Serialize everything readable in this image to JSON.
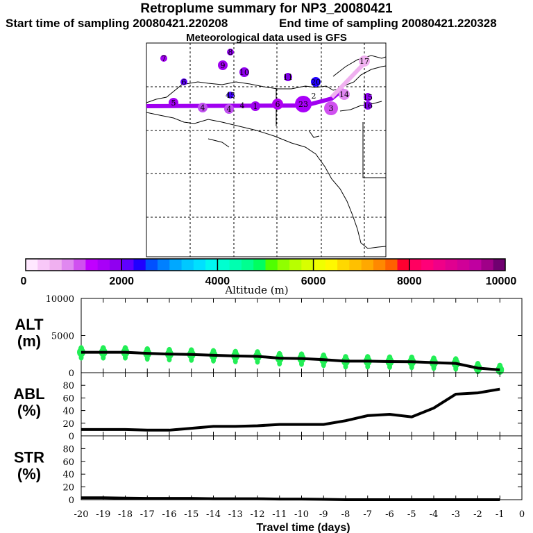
{
  "header": {
    "title": "Retroplume summary for NP3_20080421",
    "start": "Start time of sampling 20080421.220208",
    "end": "End time of sampling 20080421.220328",
    "met": "Meteorological data used is GFS"
  },
  "map": {
    "track_color": "#a000f0",
    "plumes": [
      {
        "label": "7",
        "color": "#a000f0"
      },
      {
        "label": "8",
        "color": "#9000f0"
      },
      {
        "label": "9",
        "color": "#a000f0"
      },
      {
        "label": "10",
        "color": "#9000f0"
      },
      {
        "label": "11",
        "color": "#8000e8"
      },
      {
        "label": "20",
        "color": "#2000ff"
      },
      {
        "label": "6",
        "color": "#6000ff"
      },
      {
        "label": "45",
        "color": "#4000ff"
      },
      {
        "label": "5",
        "color": "#a000f0"
      },
      {
        "label": "4",
        "color": "#c050f0"
      },
      {
        "label": "4",
        "color": "#c050f0"
      },
      {
        "label": "1",
        "color": "#a000f0"
      },
      {
        "label": "6",
        "color": "#b000f0"
      },
      {
        "label": "23",
        "color": "#a800f8"
      },
      {
        "label": "3",
        "color": "#d050f0"
      },
      {
        "label": "2",
        "color": "#e088f0"
      },
      {
        "label": "14",
        "color": "#e088f0"
      },
      {
        "label": "15",
        "color": "#9000f0"
      },
      {
        "label": "16",
        "color": "#8000e8"
      },
      {
        "label": "17",
        "color": "#f0b0f0"
      },
      {
        "label": "4",
        "color": "#000000"
      }
    ]
  },
  "colorbar": {
    "label": "Altitude (m)",
    "ticks": [
      "0",
      "2000",
      "4000",
      "6000",
      "8000",
      "10000"
    ],
    "colors": [
      "#ffe8ff",
      "#f8c8f8",
      "#f0b0f0",
      "#e088f0",
      "#d050f0",
      "#c000ff",
      "#a800f8",
      "#9000f0",
      "#6000ff",
      "#2000ff",
      "#0050ff",
      "#0080ff",
      "#00a8ff",
      "#00c8ff",
      "#00e0ff",
      "#00f8f0",
      "#00ffd0",
      "#00ffb0",
      "#00ff90",
      "#00ff60",
      "#50ff00",
      "#90ff00",
      "#b8ff00",
      "#d8ff00",
      "#f0ff00",
      "#fff800",
      "#ffd800",
      "#ffc000",
      "#ffa800",
      "#ff8800",
      "#ff6000",
      "#ff0030",
      "#ff0060",
      "#ff0078",
      "#f00088",
      "#e00090",
      "#d00098",
      "#c000a0",
      "#a00088",
      "#700070"
    ]
  },
  "chart_data": [
    {
      "type": "line",
      "title": "ALT (m)",
      "ylabel": [
        "ALT",
        "(m)"
      ],
      "ylim": [
        0,
        10000
      ],
      "yticks": [
        "0",
        "5000",
        "10000"
      ],
      "x": [
        -20,
        -19,
        -18,
        -17,
        -16,
        -15,
        -14,
        -13,
        -12,
        -11,
        -10,
        -9,
        -8,
        -7,
        -6,
        -5,
        -4,
        -3,
        -2,
        -1
      ],
      "values": [
        2750,
        2750,
        2750,
        2600,
        2500,
        2450,
        2350,
        2250,
        2200,
        1950,
        1900,
        1750,
        1550,
        1550,
        1500,
        1470,
        1350,
        1250,
        620,
        380
      ],
      "scatter_color": "#22ee55"
    },
    {
      "type": "line",
      "title": "ABL (%)",
      "ylabel": [
        "ABL",
        "(%)"
      ],
      "ylim": [
        0,
        100
      ],
      "yticks": [
        "0",
        "20",
        "40",
        "60",
        "80"
      ],
      "x": [
        -20,
        -19,
        -18,
        -17,
        -16,
        -15,
        -14,
        -13,
        -12,
        -11,
        -10,
        -9,
        -8,
        -7,
        -6,
        -5,
        -4,
        -3,
        -2,
        -1
      ],
      "values": [
        10,
        10,
        10,
        9,
        9,
        12,
        15,
        15,
        16,
        18,
        18,
        18,
        24,
        32,
        34,
        30,
        44,
        66,
        68,
        74
      ]
    },
    {
      "type": "line",
      "title": "STR (%)",
      "ylabel": [
        "STR",
        "(%)"
      ],
      "ylim": [
        0,
        100
      ],
      "yticks": [
        "0",
        "20",
        "40",
        "60",
        "80"
      ],
      "x": [
        -20,
        -19,
        -18,
        -17,
        -16,
        -15,
        -14,
        -13,
        -12,
        -11,
        -10,
        -9,
        -8,
        -7,
        -6,
        -5,
        -4,
        -3,
        -2,
        -1
      ],
      "values": [
        3,
        3,
        2.5,
        2,
        2,
        2,
        1.5,
        1.5,
        1.5,
        1,
        1,
        0.5,
        0,
        0,
        0,
        0,
        0,
        0,
        0,
        0
      ]
    }
  ],
  "xaxis": {
    "label": "Travel time (days)",
    "ticks": [
      "-20",
      "-19",
      "-18",
      "-17",
      "-16",
      "-15",
      "-14",
      "-13",
      "-12",
      "-11",
      "-10",
      "-9",
      "-8",
      "-7",
      "-6",
      "-5",
      "-4",
      "-3",
      "-2",
      "-1",
      "0"
    ],
    "range": [
      -20,
      0
    ]
  }
}
